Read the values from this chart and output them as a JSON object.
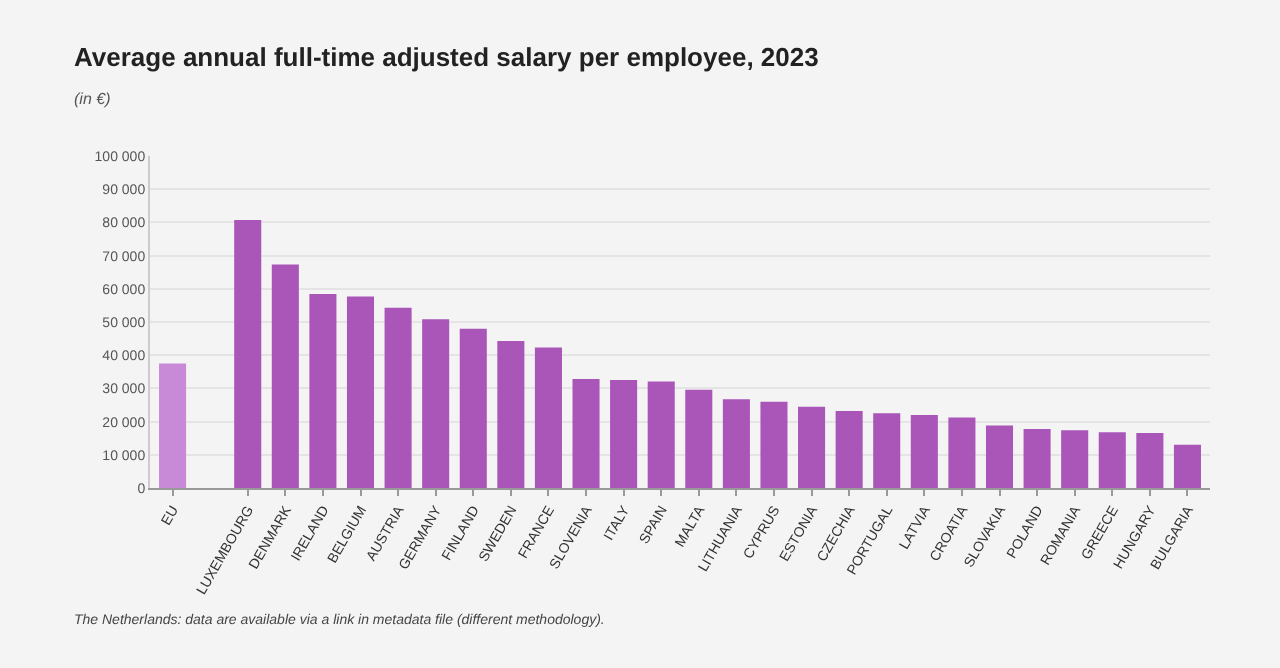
{
  "chart_data": {
    "type": "bar",
    "title": "Average annual full-time adjusted salary per employee, 2023",
    "subtitle": "(in €)",
    "categories": [
      "EU",
      null,
      "LUXEMBOURG",
      "DENMARK",
      "IRELAND",
      "BELGIUM",
      "AUSTRIA",
      "GERMANY",
      "FINLAND",
      "SWEDEN",
      "FRANCE",
      "SLOVENIA",
      "ITALY",
      "SPAIN",
      "MALTA",
      "LITHUANIA",
      "CYPRUS",
      "ESTONIA",
      "CZECHIA",
      "PORTUGAL",
      "LATVIA",
      "CROATIA",
      "SLOVAKIA",
      "POLAND",
      "ROMANIA",
      "GREECE",
      "HUNGARY",
      "BULGARIA"
    ],
    "values": [
      37500,
      null,
      80700,
      67300,
      58400,
      57700,
      54300,
      50800,
      48000,
      44300,
      42300,
      32800,
      32500,
      32100,
      29600,
      26700,
      26000,
      24500,
      23200,
      22500,
      22000,
      21200,
      18800,
      17800,
      17400,
      16800,
      16600,
      13000
    ],
    "colors": [
      "#c88ad6",
      null,
      "#a956b8",
      "#a956b8",
      "#a956b8",
      "#a956b8",
      "#a956b8",
      "#a956b8",
      "#a956b8",
      "#a956b8",
      "#a956b8",
      "#a956b8",
      "#a956b8",
      "#a956b8",
      "#a956b8",
      "#a956b8",
      "#a956b8",
      "#a956b8",
      "#a956b8",
      "#a956b8",
      "#a956b8",
      "#a956b8",
      "#a956b8",
      "#a956b8",
      "#a956b8",
      "#a956b8",
      "#a956b8",
      "#a956b8"
    ],
    "ylim": [
      0,
      100000
    ],
    "yticks": [
      0,
      {
        "value": 10000,
        "label": "10 000"
      },
      {
        "value": 20000,
        "label": "20 000"
      },
      {
        "value": 30000,
        "label": "30 000"
      },
      {
        "value": 40000,
        "label": "40 000"
      },
      {
        "value": 50000,
        "label": "50 000"
      },
      {
        "value": 60000,
        "label": "60 000"
      },
      {
        "value": 70000,
        "label": "70 000"
      },
      {
        "value": 80000,
        "label": "80 000"
      },
      {
        "value": 90000,
        "label": "90 000"
      },
      {
        "value": 100000,
        "label": "100 000"
      }
    ],
    "grid": "y",
    "annotations": [
      "The Netherlands: data are available via a link in metadata file (different methodology)."
    ]
  }
}
